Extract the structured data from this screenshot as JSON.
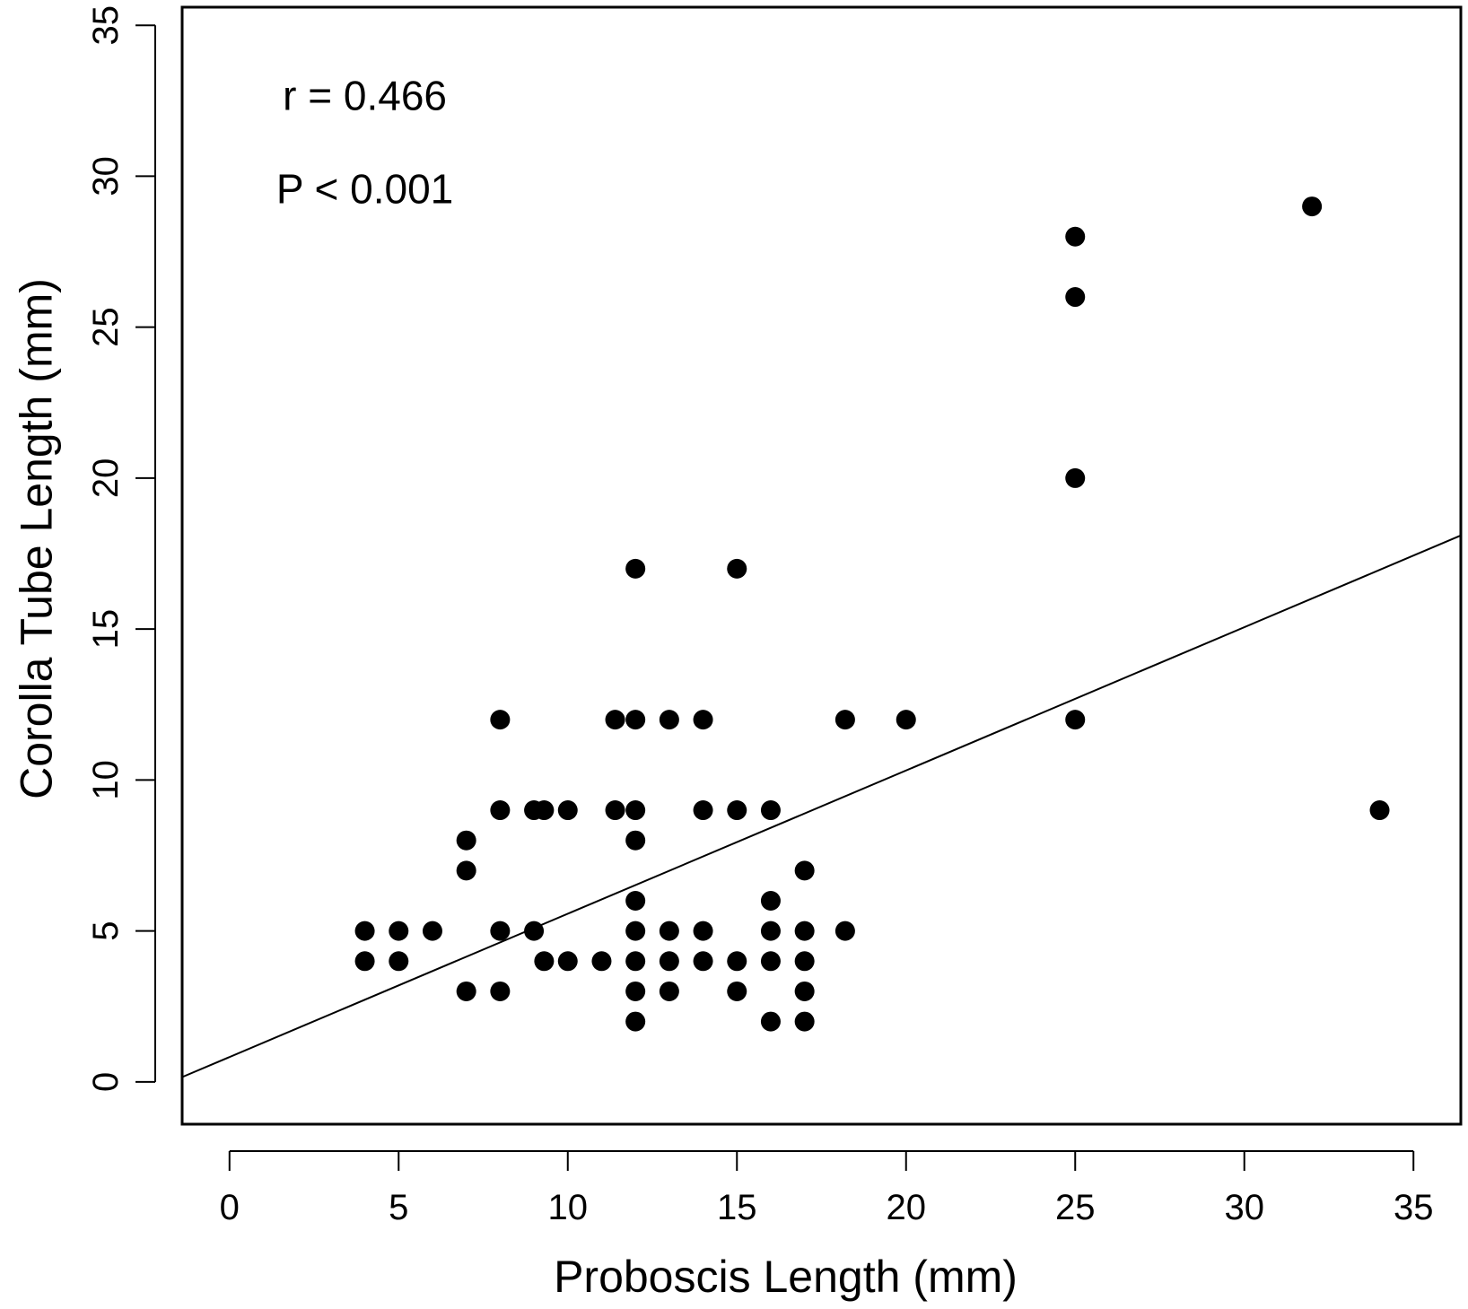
{
  "chart_data": {
    "type": "scatter",
    "xlabel": "Proboscis Length (mm)",
    "ylabel": "Corolla Tube Length (mm)",
    "xlim": [
      -1.4,
      36.4
    ],
    "ylim": [
      -1.4,
      35.6
    ],
    "xticks": [
      0,
      5,
      10,
      15,
      20,
      25,
      30,
      35
    ],
    "yticks": [
      0,
      5,
      10,
      15,
      20,
      25,
      30,
      35
    ],
    "grid": false,
    "annotations": [
      {
        "text": "r = 0.466",
        "x": 4,
        "y": 32.2
      },
      {
        "text": "P < 0.001",
        "x": 4,
        "y": 29.1
      }
    ],
    "regression_line": {
      "x": [
        -1.4,
        36.4
      ],
      "y": [
        0.16,
        18.1
      ]
    },
    "points": [
      {
        "x": 4,
        "y": 5
      },
      {
        "x": 4,
        "y": 4
      },
      {
        "x": 5,
        "y": 5
      },
      {
        "x": 5,
        "y": 4
      },
      {
        "x": 6,
        "y": 5
      },
      {
        "x": 7,
        "y": 8
      },
      {
        "x": 7,
        "y": 7
      },
      {
        "x": 7,
        "y": 3
      },
      {
        "x": 8,
        "y": 12
      },
      {
        "x": 8,
        "y": 9
      },
      {
        "x": 8,
        "y": 5
      },
      {
        "x": 8,
        "y": 3
      },
      {
        "x": 9,
        "y": 9
      },
      {
        "x": 9,
        "y": 5
      },
      {
        "x": 9.3,
        "y": 9
      },
      {
        "x": 9.3,
        "y": 4
      },
      {
        "x": 10,
        "y": 9
      },
      {
        "x": 10,
        "y": 4
      },
      {
        "x": 11,
        "y": 4
      },
      {
        "x": 11.4,
        "y": 12
      },
      {
        "x": 11.4,
        "y": 9
      },
      {
        "x": 12,
        "y": 17
      },
      {
        "x": 12,
        "y": 12
      },
      {
        "x": 12,
        "y": 9
      },
      {
        "x": 12,
        "y": 8
      },
      {
        "x": 12,
        "y": 6
      },
      {
        "x": 12,
        "y": 5
      },
      {
        "x": 12,
        "y": 4
      },
      {
        "x": 12,
        "y": 3
      },
      {
        "x": 12,
        "y": 2
      },
      {
        "x": 13,
        "y": 12
      },
      {
        "x": 13,
        "y": 5
      },
      {
        "x": 13,
        "y": 4
      },
      {
        "x": 13,
        "y": 3
      },
      {
        "x": 14,
        "y": 12
      },
      {
        "x": 14,
        "y": 9
      },
      {
        "x": 14,
        "y": 5
      },
      {
        "x": 14,
        "y": 4
      },
      {
        "x": 15,
        "y": 17
      },
      {
        "x": 15,
        "y": 9
      },
      {
        "x": 15,
        "y": 4
      },
      {
        "x": 15,
        "y": 3
      },
      {
        "x": 16,
        "y": 9
      },
      {
        "x": 16,
        "y": 6
      },
      {
        "x": 16,
        "y": 5
      },
      {
        "x": 16,
        "y": 4
      },
      {
        "x": 16,
        "y": 2
      },
      {
        "x": 17,
        "y": 7
      },
      {
        "x": 17,
        "y": 5
      },
      {
        "x": 17,
        "y": 4
      },
      {
        "x": 17,
        "y": 3
      },
      {
        "x": 17,
        "y": 2
      },
      {
        "x": 18.2,
        "y": 12
      },
      {
        "x": 18.2,
        "y": 5
      },
      {
        "x": 20,
        "y": 12
      },
      {
        "x": 25,
        "y": 28
      },
      {
        "x": 25,
        "y": 26
      },
      {
        "x": 25,
        "y": 20
      },
      {
        "x": 25,
        "y": 12
      },
      {
        "x": 32,
        "y": 29
      },
      {
        "x": 34,
        "y": 9
      }
    ]
  }
}
